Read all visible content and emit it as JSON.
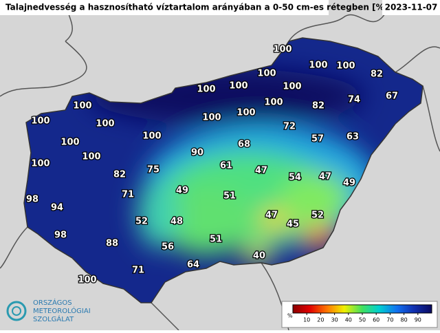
{
  "header": {
    "title": "Talajnedvesség a hasznosítható víztartalom arányában a 0-50 cm-es rétegben [%]",
    "date": "2023-11-07"
  },
  "map": {
    "values": [
      100,
      100,
      100,
      82,
      100,
      100,
      100,
      100,
      67,
      100,
      100,
      100,
      82,
      74,
      100,
      100,
      100,
      72,
      100,
      100,
      90,
      68,
      57,
      63,
      100,
      100,
      82,
      75,
      61,
      47,
      54,
      47,
      71,
      49,
      51,
      49,
      98,
      94,
      52,
      48,
      47,
      45,
      52,
      98,
      88,
      56,
      51,
      64,
      40,
      71,
      100
    ]
  },
  "legend": {
    "unit": "%",
    "ticks": [
      10,
      20,
      30,
      40,
      50,
      60,
      70,
      80,
      90
    ]
  },
  "logo": {
    "lines": [
      "ORSZÁGOS",
      "METEOROLÓGIAI",
      "SZOLGÁLAT"
    ]
  }
}
